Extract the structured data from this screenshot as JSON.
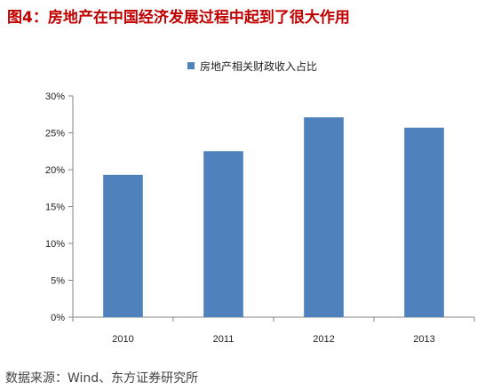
{
  "figure_title": "图4：房地产在中国经济发展过程中起到了很大作用",
  "source": "数据来源：Wind、东方证券研究所",
  "chart_data": {
    "type": "bar",
    "categories": [
      "2010",
      "2011",
      "2012",
      "2013"
    ],
    "series": [
      {
        "name": "房地产相关财政收入占比",
        "values": [
          19.3,
          22.5,
          27.1,
          25.7
        ],
        "color": "#4f81bd"
      }
    ],
    "y_ticks": [
      "0%",
      "5%",
      "10%",
      "15%",
      "20%",
      "25%",
      "30%"
    ],
    "ylim": [
      0,
      30
    ],
    "y_unit": "%",
    "grid": false,
    "legend": "top"
  }
}
